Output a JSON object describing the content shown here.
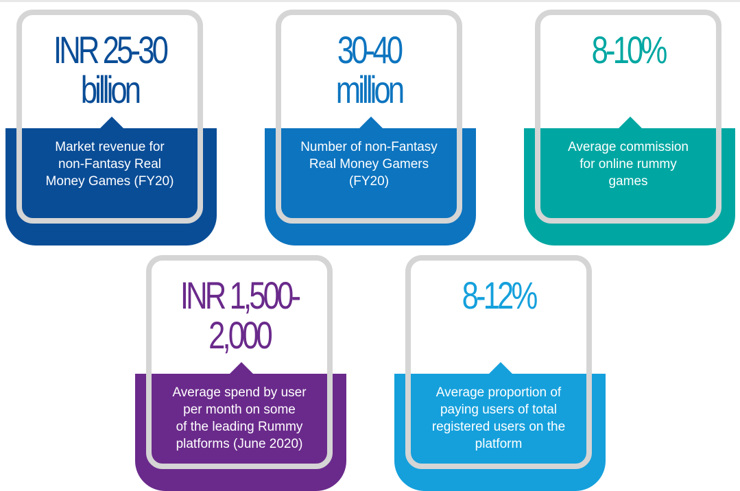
{
  "colors": {
    "navy": "#0a4d97",
    "medium_blue": "#0d74bf",
    "teal": "#00a7a2",
    "purple": "#6a2a8b",
    "light_blue": "#15a0dc",
    "frame_gray": "#d5d5d5"
  },
  "cards": [
    {
      "value": "INR 25-30\nbillion",
      "description": "Market revenue for\nnon-Fantasy Real\nMoney Games (FY20)"
    },
    {
      "value": "30-40\nmillion",
      "description": "Number of non-Fantasy\nReal Money Gamers\n(FY20)"
    },
    {
      "value": "8-10%",
      "description": "Average commission\nfor online rummy\ngames"
    },
    {
      "value": "INR 1,500-\n2,000",
      "description": "Average spend by user\nper month on some\nof the leading Rummy\nplatforms (June 2020)"
    },
    {
      "value": "8-12%",
      "description": "Average proportion of\npaying users of total\nregistered users on the\nplatform"
    }
  ]
}
